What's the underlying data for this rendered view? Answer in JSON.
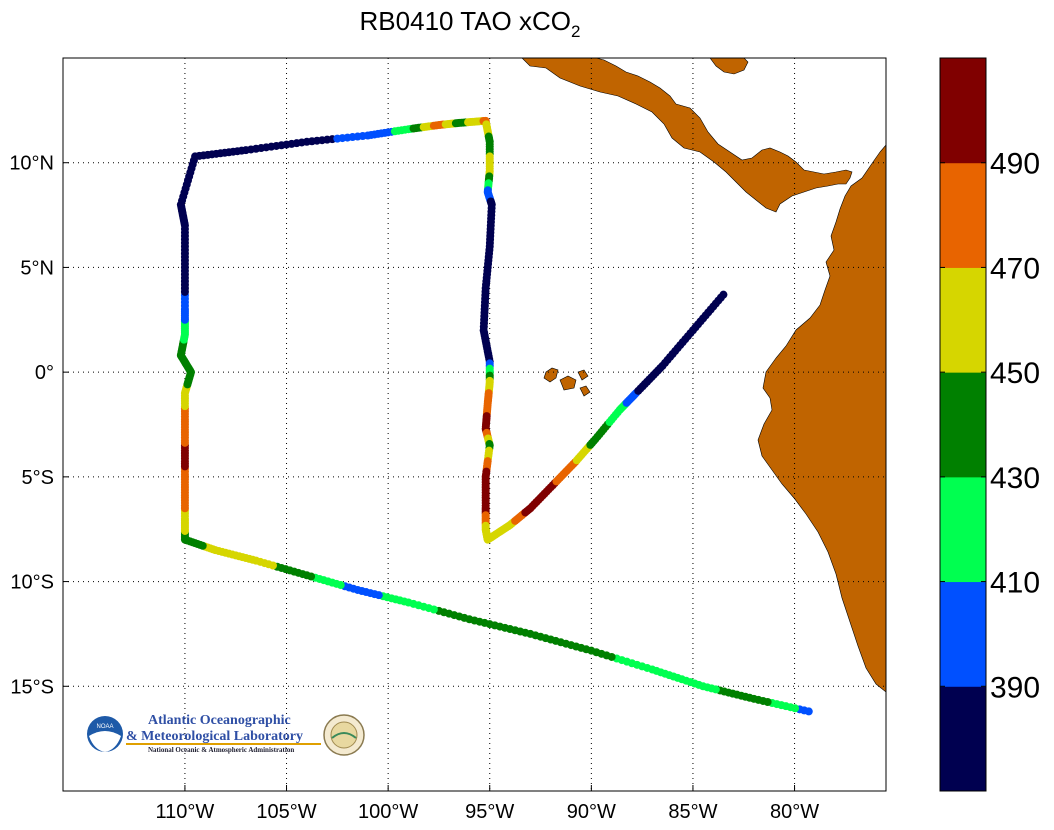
{
  "title": {
    "main": "RB0410 TAO xCO",
    "subscript": "2"
  },
  "map": {
    "lon_range": [
      -116,
      -75.5
    ],
    "lat_range": [
      -20,
      15
    ],
    "x_ticks": [
      {
        "value": -110,
        "label": "110°W"
      },
      {
        "value": -105,
        "label": "105°W"
      },
      {
        "value": -100,
        "label": "100°W"
      },
      {
        "value": -95,
        "label": "95°W"
      },
      {
        "value": -90,
        "label": "90°W"
      },
      {
        "value": -85,
        "label": "85°W"
      },
      {
        "value": -80,
        "label": "80°W"
      }
    ],
    "y_ticks": [
      {
        "value": 10,
        "label": "10°N"
      },
      {
        "value": 5,
        "label": "5°N"
      },
      {
        "value": 0,
        "label": "0°"
      },
      {
        "value": -5,
        "label": "5°S"
      },
      {
        "value": -10,
        "label": "10°S"
      },
      {
        "value": -15,
        "label": "15°S"
      }
    ],
    "grid": "dotted",
    "land_color": "#c06400",
    "ocean_color": "#ffffff"
  },
  "colorbar": {
    "min": 370,
    "max": 510,
    "colors": [
      "#000050",
      "#0050ff",
      "#00ff50",
      "#008000",
      "#d6d600",
      "#e86400",
      "#800000"
    ],
    "ticks": [
      {
        "value": 390,
        "label": "390"
      },
      {
        "value": 410,
        "label": "410"
      },
      {
        "value": 430,
        "label": "430"
      },
      {
        "value": 450,
        "label": "450"
      },
      {
        "value": 470,
        "label": "470"
      },
      {
        "value": 490,
        "label": "490"
      }
    ]
  },
  "track": [
    {
      "lon": -79.3,
      "lat": -16.2,
      "xco2": 400
    },
    {
      "lon": -82.0,
      "lat": -15.6,
      "xco2": 440
    },
    {
      "lon": -84.5,
      "lat": -15.0,
      "xco2": 425
    },
    {
      "lon": -87.0,
      "lat": -14.2,
      "xco2": 415
    },
    {
      "lon": -90.0,
      "lat": -13.3,
      "xco2": 440
    },
    {
      "lon": -93.0,
      "lat": -12.5,
      "xco2": 435
    },
    {
      "lon": -96.0,
      "lat": -11.8,
      "xco2": 440
    },
    {
      "lon": -99.0,
      "lat": -11.0,
      "xco2": 420
    },
    {
      "lon": -101.5,
      "lat": -10.4,
      "xco2": 400
    },
    {
      "lon": -104.0,
      "lat": -9.7,
      "xco2": 435
    },
    {
      "lon": -106.5,
      "lat": -9.0,
      "xco2": 460
    },
    {
      "lon": -108.5,
      "lat": -8.5,
      "xco2": 455
    },
    {
      "lon": -110.0,
      "lat": -8.0,
      "xco2": 440
    },
    {
      "lon": -110.0,
      "lat": -7.0,
      "xco2": 465
    },
    {
      "lon": -110.0,
      "lat": -5.5,
      "xco2": 480
    },
    {
      "lon": -110.0,
      "lat": -4.0,
      "xco2": 495
    },
    {
      "lon": -110.0,
      "lat": -2.5,
      "xco2": 480
    },
    {
      "lon": -110.0,
      "lat": -1.0,
      "xco2": 460
    },
    {
      "lon": -109.7,
      "lat": 0.0,
      "xco2": 435
    },
    {
      "lon": -110.2,
      "lat": 0.8,
      "xco2": 440
    },
    {
      "lon": -110.0,
      "lat": 1.8,
      "xco2": 425
    },
    {
      "lon": -110.0,
      "lat": 3.0,
      "xco2": 395
    },
    {
      "lon": -110.0,
      "lat": 5.0,
      "xco2": 380
    },
    {
      "lon": -110.0,
      "lat": 7.0,
      "xco2": 380
    },
    {
      "lon": -110.2,
      "lat": 8.0,
      "xco2": 380
    },
    {
      "lon": -109.5,
      "lat": 10.3,
      "xco2": 380
    },
    {
      "lon": -107.0,
      "lat": 10.6,
      "xco2": 385
    },
    {
      "lon": -104.0,
      "lat": 11.0,
      "xco2": 385
    },
    {
      "lon": -101.0,
      "lat": 11.3,
      "xco2": 395
    },
    {
      "lon": -99.0,
      "lat": 11.6,
      "xco2": 420
    },
    {
      "lon": -97.5,
      "lat": 11.8,
      "xco2": 480
    },
    {
      "lon": -96.5,
      "lat": 11.9,
      "xco2": 440
    },
    {
      "lon": -95.2,
      "lat": 12.0,
      "xco2": 475
    },
    {
      "lon": -95.0,
      "lat": 11.0,
      "xco2": 440
    },
    {
      "lon": -95.0,
      "lat": 9.6,
      "xco2": 460
    },
    {
      "lon": -95.1,
      "lat": 8.6,
      "xco2": 400
    },
    {
      "lon": -94.9,
      "lat": 8.0,
      "xco2": 385
    },
    {
      "lon": -95.0,
      "lat": 6.0,
      "xco2": 380
    },
    {
      "lon": -95.2,
      "lat": 4.0,
      "xco2": 380
    },
    {
      "lon": -95.3,
      "lat": 2.0,
      "xco2": 380
    },
    {
      "lon": -95.0,
      "lat": 0.5,
      "xco2": 385
    },
    {
      "lon": -95.0,
      "lat": -0.5,
      "xco2": 460
    },
    {
      "lon": -95.1,
      "lat": -1.5,
      "xco2": 480
    },
    {
      "lon": -95.2,
      "lat": -2.7,
      "xco2": 500
    },
    {
      "lon": -95.0,
      "lat": -3.5,
      "xco2": 440
    },
    {
      "lon": -95.2,
      "lat": -5.0,
      "xco2": 500
    },
    {
      "lon": -95.2,
      "lat": -6.5,
      "xco2": 500
    },
    {
      "lon": -95.2,
      "lat": -7.5,
      "xco2": 460
    },
    {
      "lon": -95.1,
      "lat": -8.0,
      "xco2": 460
    },
    {
      "lon": -94.0,
      "lat": -7.3,
      "xco2": 460
    },
    {
      "lon": -93.0,
      "lat": -6.5,
      "xco2": 500
    },
    {
      "lon": -91.8,
      "lat": -5.3,
      "xco2": 490
    },
    {
      "lon": -90.8,
      "lat": -4.3,
      "xco2": 470
    },
    {
      "lon": -89.8,
      "lat": -3.2,
      "xco2": 440
    },
    {
      "lon": -88.6,
      "lat": -1.8,
      "xco2": 420
    },
    {
      "lon": -87.8,
      "lat": -1.0,
      "xco2": 390
    },
    {
      "lon": -86.5,
      "lat": 0.3,
      "xco2": 380
    },
    {
      "lon": -85.0,
      "lat": 2.0,
      "xco2": 380
    },
    {
      "lon": -83.5,
      "lat": 3.7,
      "xco2": 380
    }
  ],
  "logo": {
    "line1": "Atlantic Oceanographic",
    "line2": "& Meteorological Laboratory",
    "line3": "National Oceanic & Atmospheric Administration",
    "badge": "NOAA"
  }
}
